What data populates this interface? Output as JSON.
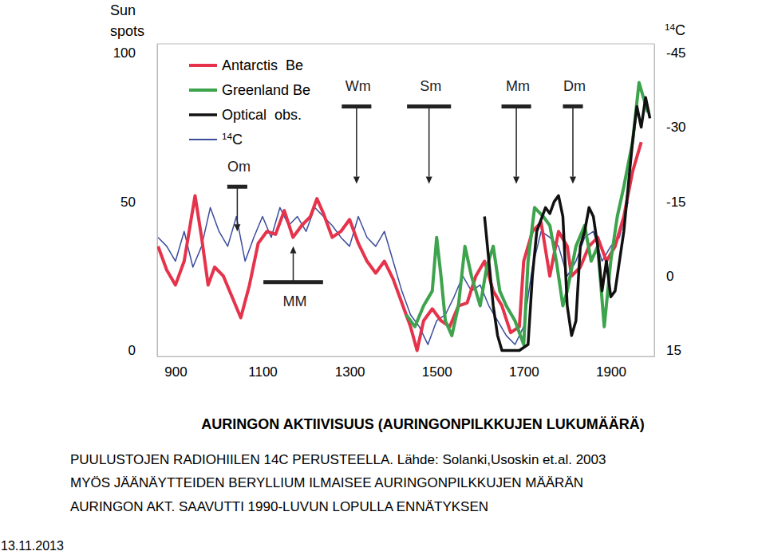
{
  "chart_data": {
    "type": "line",
    "title": "AURINGON AKTIIVISUUS (AURINGONPILKKUJEN LUKUMÄÄRÄ)",
    "footnotes": [
      "PUULUSTOJEN RADIOHIILEN 14C PERUSTEELLA. Lähde: Solanki,Usoskin et.al. 2003",
      "MYÖS JÄÄNÄYTTEIDEN BERYLLIUM ILMAISEE AURINGONPILKKUJEN MÄÄRÄN",
      "AURINGON AKT. SAAVUTTI 1990-LUVUN LOPULLA ENNÄTYKSEN"
    ],
    "date": "13.11.2013",
    "ylabel": "Sun spots",
    "y2label": "14C",
    "xlim": [
      858,
      2000
    ],
    "xticks": [
      900,
      1100,
      1300,
      1500,
      1700,
      1900
    ],
    "ylim": [
      -2,
      103
    ],
    "yticks": [
      0,
      50,
      100
    ],
    "y2lim": [
      16.2,
      -46.8
    ],
    "y2ticks": [
      -45,
      -30,
      -15,
      0,
      15
    ],
    "legend": "upper left",
    "grid": false,
    "series": [
      {
        "name": "Antarctis  Be",
        "color": "#e5334b",
        "x": [
          860,
          880,
          900,
          920,
          945,
          960,
          975,
          990,
          1010,
          1030,
          1050,
          1070,
          1090,
          1110,
          1130,
          1150,
          1170,
          1190,
          1210,
          1225,
          1240,
          1260,
          1280,
          1300,
          1320,
          1340,
          1360,
          1380,
          1400,
          1420,
          1440,
          1455,
          1470,
          1490,
          1510,
          1530,
          1550,
          1570,
          1590,
          1610,
          1630,
          1650,
          1670,
          1690,
          1700,
          1720,
          1740,
          1760,
          1780,
          1800,
          1810,
          1830,
          1850,
          1870,
          1890,
          1910,
          1930,
          1950,
          1970
        ],
        "values": [
          35,
          27,
          22,
          30,
          52,
          38,
          22,
          28,
          25,
          18,
          11,
          22,
          36,
          40,
          39,
          47,
          38,
          42,
          45,
          51,
          46,
          38,
          40,
          44,
          36,
          30,
          26,
          30,
          24,
          16,
          8,
          0,
          10,
          14,
          10,
          8,
          15,
          16,
          25,
          30,
          20,
          15,
          6,
          8,
          30,
          40,
          43,
          25,
          40,
          35,
          25,
          28,
          35,
          38,
          30,
          35,
          45,
          60,
          70
        ]
      },
      {
        "name": "Greenland Be",
        "color": "#3da34d",
        "x": [
          1430,
          1450,
          1470,
          1490,
          1500,
          1510,
          1520,
          1535,
          1550,
          1565,
          1580,
          1600,
          1615,
          1630,
          1645,
          1660,
          1680,
          1700,
          1710,
          1725,
          1745,
          1760,
          1775,
          1790,
          1800,
          1820,
          1840,
          1855,
          1870,
          1885,
          1900,
          1915,
          1930,
          1950,
          1965,
          1975,
          1985
        ],
        "values": [
          12,
          8,
          15,
          20,
          38,
          25,
          10,
          5,
          15,
          35,
          25,
          15,
          28,
          35,
          20,
          15,
          10,
          2,
          30,
          48,
          45,
          42,
          30,
          15,
          20,
          35,
          42,
          30,
          35,
          8,
          30,
          45,
          55,
          70,
          90,
          85,
          80
        ]
      },
      {
        "name": "Optical  obs.",
        "color": "#111111",
        "x": [
          1610,
          1620,
          1630,
          1640,
          1650,
          1670,
          1690,
          1710,
          1720,
          1730,
          1750,
          1760,
          1770,
          1780,
          1790,
          1800,
          1810,
          1820,
          1830,
          1840,
          1850,
          1860,
          1870,
          1880,
          1890,
          1900,
          1910,
          1920,
          1930,
          1940,
          1950,
          1960,
          1970,
          1980,
          1990
        ],
        "values": [
          45,
          30,
          15,
          5,
          0,
          0,
          0,
          2,
          25,
          40,
          48,
          46,
          50,
          52,
          45,
          15,
          5,
          10,
          35,
          40,
          48,
          45,
          35,
          20,
          30,
          18,
          20,
          30,
          40,
          55,
          70,
          82,
          75,
          85,
          78
        ]
      },
      {
        "name": "14C",
        "color": "#3b4c9b",
        "axis": "y2",
        "x": [
          860,
          880,
          900,
          920,
          940,
          960,
          980,
          1000,
          1020,
          1040,
          1060,
          1080,
          1100,
          1120,
          1140,
          1160,
          1180,
          1200,
          1220,
          1240,
          1260,
          1280,
          1300,
          1320,
          1340,
          1360,
          1380,
          1400,
          1420,
          1440,
          1460,
          1480,
          1500,
          1520,
          1540,
          1560,
          1580,
          1600,
          1620,
          1640,
          1660,
          1680,
          1700,
          1720,
          1740,
          1760,
          1780,
          1800,
          1820,
          1840,
          1860,
          1880,
          1900,
          1920,
          1940
        ],
        "values": [
          -7.8,
          -6,
          -3,
          -9,
          -1.8,
          -6,
          -13.8,
          -9,
          -6,
          -12,
          -3,
          -7.8,
          -12,
          -7.8,
          -13.8,
          -10.2,
          -12,
          -9,
          -13.8,
          -12,
          -10.2,
          -7.8,
          -6,
          -12,
          -7.8,
          -6,
          -9,
          -3,
          3,
          7.8,
          10.2,
          13.8,
          9,
          7.8,
          4.2,
          0,
          3,
          1.8,
          6,
          9,
          12,
          13.8,
          10.2,
          -1.8,
          -9,
          -7.8,
          -6,
          0,
          -3,
          -7.8,
          -9,
          -3,
          -6,
          -7.8,
          -15
        ]
      }
    ],
    "annotations": [
      {
        "text": "Om",
        "start": 1019,
        "end": 1065,
        "bar_y": 55,
        "arrow_y": 40
      },
      {
        "text": "MM",
        "start": 1102,
        "end": 1239,
        "bar_y": 23,
        "arrow_y": 35
      },
      {
        "text": "Wm",
        "start": 1282,
        "end": 1350,
        "bar_y": 82,
        "arrow_y": 56
      },
      {
        "text": "Sm",
        "start": 1432,
        "end": 1533,
        "bar_y": 82,
        "arrow_y": 56
      },
      {
        "text": "Mm",
        "start": 1649,
        "end": 1717,
        "bar_y": 82,
        "arrow_y": 56
      },
      {
        "text": "Dm",
        "start": 1790,
        "end": 1836,
        "bar_y": 82,
        "arrow_y": 56
      }
    ]
  }
}
